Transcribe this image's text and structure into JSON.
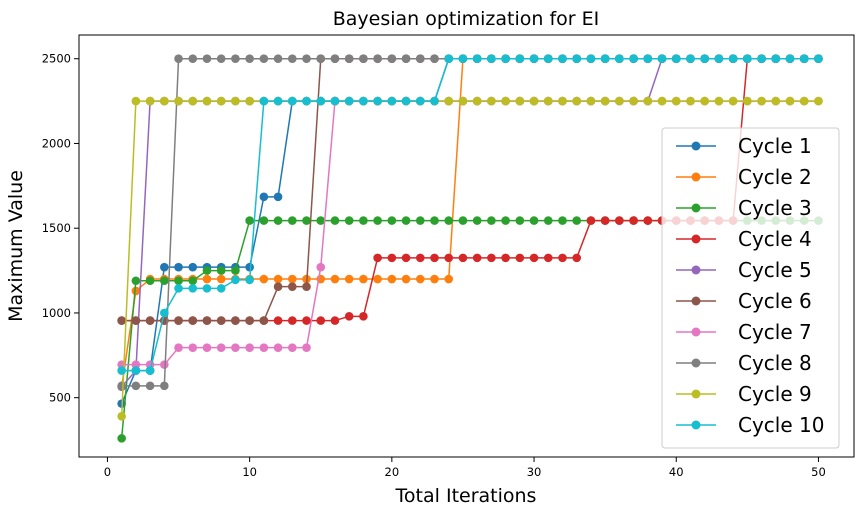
{
  "chart_data": {
    "type": "line",
    "title": "Bayesian optimization for EI",
    "xlabel": "Total Iterations",
    "ylabel": "Maximum Value",
    "xlim": [
      -2,
      52.5
    ],
    "ylim": [
      150,
      2640
    ],
    "xticks": [
      0,
      10,
      20,
      30,
      40,
      50
    ],
    "yticks": [
      500,
      1000,
      1500,
      2000,
      2500
    ],
    "grid": false,
    "legend_position": "right",
    "marker": "circle",
    "series": [
      {
        "name": "Cycle 1",
        "color": "#1f77b4",
        "values": [
          465,
          660,
          660,
          1270,
          1270,
          1270,
          1270,
          1270,
          1270,
          1270,
          1685,
          1685,
          2250,
          2250,
          2250,
          2250,
          2250,
          2250,
          2250,
          2250,
          2250,
          2250,
          2250,
          2500,
          2500,
          2500,
          2500,
          2500,
          2500,
          2500,
          2500,
          2500,
          2500,
          2500,
          2500,
          2500,
          2500,
          2500,
          2500,
          2500,
          2500,
          2500,
          2500,
          2500,
          2500,
          2500,
          2500,
          2500,
          2500,
          2500
        ]
      },
      {
        "name": "Cycle 2",
        "color": "#ff7f0e",
        "values": [
          565,
          1130,
          1200,
          1200,
          1200,
          1200,
          1200,
          1200,
          1200,
          1200,
          1200,
          1200,
          1200,
          1200,
          1200,
          1200,
          1200,
          1200,
          1200,
          1200,
          1200,
          1200,
          1200,
          1200,
          2500,
          2500,
          2500,
          2500,
          2500,
          2500,
          2500,
          2500,
          2500,
          2500,
          2500,
          2500,
          2500,
          2500,
          2500,
          2500,
          2500,
          2500,
          2500,
          2500,
          2500,
          2500,
          2500,
          2500,
          2500,
          2500
        ]
      },
      {
        "name": "Cycle 3",
        "color": "#2ca02c",
        "values": [
          260,
          1190,
          1190,
          1190,
          1190,
          1190,
          1250,
          1250,
          1250,
          1545,
          1545,
          1545,
          1545,
          1545,
          1545,
          1545,
          1545,
          1545,
          1545,
          1545,
          1545,
          1545,
          1545,
          1545,
          1545,
          1545,
          1545,
          1545,
          1545,
          1545,
          1545,
          1545,
          1545,
          1545,
          1545,
          1545,
          1545,
          1545,
          1545,
          1545,
          1545,
          1545,
          1545,
          1545,
          1545,
          1545,
          1545,
          1545,
          1545,
          1545
        ]
      },
      {
        "name": "Cycle 4",
        "color": "#d62728",
        "values": [
          955,
          955,
          955,
          955,
          955,
          955,
          955,
          955,
          955,
          955,
          955,
          955,
          955,
          955,
          955,
          955,
          980,
          980,
          1325,
          1325,
          1325,
          1325,
          1325,
          1325,
          1325,
          1325,
          1325,
          1325,
          1325,
          1325,
          1325,
          1325,
          1325,
          1545,
          1545,
          1545,
          1545,
          1545,
          1545,
          1545,
          1545,
          1545,
          1545,
          1545,
          2500,
          2500,
          2500,
          2500,
          2500,
          2500
        ]
      },
      {
        "name": "Cycle 5",
        "color": "#9467bd",
        "values": [
          565,
          660,
          2250,
          2250,
          2250,
          2250,
          2250,
          2250,
          2250,
          2250,
          2250,
          2250,
          2250,
          2250,
          2250,
          2250,
          2250,
          2250,
          2250,
          2250,
          2250,
          2250,
          2250,
          2250,
          2250,
          2250,
          2250,
          2250,
          2250,
          2250,
          2250,
          2250,
          2250,
          2250,
          2250,
          2250,
          2250,
          2250,
          2500,
          2500,
          2500,
          2500,
          2500,
          2500,
          2500,
          2500,
          2500,
          2500,
          2500,
          2500
        ]
      },
      {
        "name": "Cycle 6",
        "color": "#8c564b",
        "values": [
          955,
          955,
          955,
          955,
          955,
          955,
          955,
          955,
          955,
          955,
          955,
          1155,
          1155,
          1155,
          2500,
          2500,
          2500,
          2500,
          2500,
          2500,
          2500,
          2500,
          2500,
          2500,
          2500,
          2500,
          2500,
          2500,
          2500,
          2500,
          2500,
          2500,
          2500,
          2500,
          2500,
          2500,
          2500,
          2500,
          2500,
          2500,
          2500,
          2500,
          2500,
          2500,
          2500,
          2500,
          2500,
          2500,
          2500,
          2500
        ]
      },
      {
        "name": "Cycle 7",
        "color": "#e377c2",
        "values": [
          695,
          695,
          695,
          695,
          795,
          795,
          795,
          795,
          795,
          795,
          795,
          795,
          795,
          795,
          1270,
          2250,
          2250,
          2250,
          2250,
          2250,
          2250,
          2250,
          2250,
          2250,
          2250,
          2250,
          2250,
          2250,
          2250,
          2250,
          2250,
          2250,
          2250,
          2250,
          2250,
          2250,
          2250,
          2250,
          2250,
          2250,
          2250,
          2250,
          2250,
          2250,
          2250,
          2250,
          2250,
          2250,
          2250,
          2250
        ]
      },
      {
        "name": "Cycle 8",
        "color": "#7f7f7f",
        "values": [
          570,
          570,
          570,
          570,
          2500,
          2500,
          2500,
          2500,
          2500,
          2500,
          2500,
          2500,
          2500,
          2500,
          2500,
          2500,
          2500,
          2500,
          2500,
          2500,
          2500,
          2500,
          2500,
          2500,
          2500,
          2500,
          2500,
          2500,
          2500,
          2500,
          2500,
          2500,
          2500,
          2500,
          2500,
          2500,
          2500,
          2500,
          2500,
          2500,
          2500,
          2500,
          2500,
          2500,
          2500,
          2500,
          2500,
          2500,
          2500,
          2500
        ]
      },
      {
        "name": "Cycle 9",
        "color": "#bcbd22",
        "values": [
          390,
          2250,
          2250,
          2250,
          2250,
          2250,
          2250,
          2250,
          2250,
          2250,
          2250,
          2250,
          2250,
          2250,
          2250,
          2250,
          2250,
          2250,
          2250,
          2250,
          2250,
          2250,
          2250,
          2250,
          2250,
          2250,
          2250,
          2250,
          2250,
          2250,
          2250,
          2250,
          2250,
          2250,
          2250,
          2250,
          2250,
          2250,
          2250,
          2250,
          2250,
          2250,
          2250,
          2250,
          2250,
          2250,
          2250,
          2250,
          2250,
          2250
        ]
      },
      {
        "name": "Cycle 10",
        "color": "#17becf",
        "values": [
          660,
          660,
          660,
          1000,
          1145,
          1145,
          1145,
          1145,
          1195,
          1195,
          2250,
          2250,
          2250,
          2250,
          2250,
          2250,
          2250,
          2250,
          2250,
          2250,
          2250,
          2250,
          2250,
          2500,
          2500,
          2500,
          2500,
          2500,
          2500,
          2500,
          2500,
          2500,
          2500,
          2500,
          2500,
          2500,
          2500,
          2500,
          2500,
          2500,
          2500,
          2500,
          2500,
          2500,
          2500,
          2500,
          2500,
          2500,
          2500,
          2500
        ]
      }
    ]
  }
}
